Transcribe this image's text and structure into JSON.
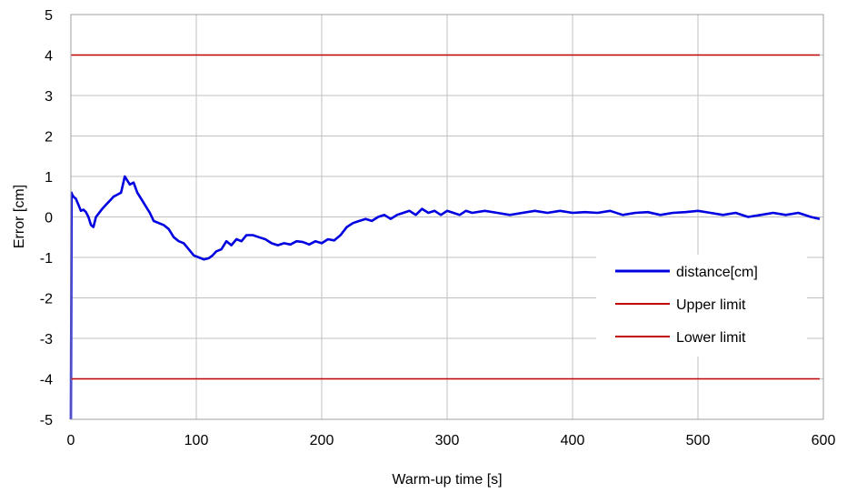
{
  "chart_data": {
    "type": "line",
    "title": "",
    "xlabel": "Warm-up time [s]",
    "ylabel": "Error  [cm]",
    "xlim": [
      0,
      600
    ],
    "ylim": [
      -5,
      5
    ],
    "xticks": [
      "0",
      "100",
      "200",
      "300",
      "400",
      "500",
      "600"
    ],
    "yticks": [
      "-5",
      "-4",
      "-3",
      "-2",
      "-1",
      "0",
      "1",
      "2",
      "3",
      "4",
      "5"
    ],
    "grid": true,
    "legend_position": "lower-right",
    "series": [
      {
        "name": "distance[cm]",
        "color": "#0000e0",
        "x": [
          0,
          0.5,
          1,
          2,
          4,
          6,
          8,
          10,
          12,
          14,
          16,
          18,
          20,
          22,
          25,
          28,
          31,
          34,
          37,
          40,
          43,
          45,
          47,
          50,
          53,
          56,
          60,
          63,
          66,
          70,
          74,
          78,
          82,
          86,
          90,
          94,
          98,
          102,
          106,
          110,
          113,
          116,
          120,
          124,
          128,
          132,
          136,
          140,
          145,
          150,
          155,
          160,
          165,
          170,
          175,
          180,
          185,
          190,
          195,
          200,
          205,
          210,
          215,
          220,
          225,
          230,
          235,
          240,
          245,
          250,
          255,
          260,
          265,
          270,
          275,
          280,
          285,
          290,
          295,
          300,
          305,
          310,
          315,
          320,
          330,
          340,
          350,
          360,
          370,
          380,
          390,
          400,
          410,
          420,
          430,
          440,
          450,
          460,
          470,
          480,
          490,
          500,
          510,
          520,
          530,
          540,
          550,
          560,
          570,
          580,
          590,
          597
        ],
        "values": [
          -5.0,
          0.6,
          0.55,
          0.5,
          0.45,
          0.3,
          0.15,
          0.18,
          0.12,
          0.0,
          -0.2,
          -0.25,
          0.0,
          0.08,
          0.2,
          0.3,
          0.4,
          0.5,
          0.55,
          0.6,
          1.0,
          0.9,
          0.8,
          0.85,
          0.6,
          0.45,
          0.25,
          0.1,
          -0.1,
          -0.15,
          -0.2,
          -0.3,
          -0.5,
          -0.6,
          -0.65,
          -0.8,
          -0.95,
          -1.0,
          -1.05,
          -1.02,
          -0.95,
          -0.85,
          -0.8,
          -0.6,
          -0.7,
          -0.55,
          -0.6,
          -0.45,
          -0.45,
          -0.5,
          -0.55,
          -0.65,
          -0.7,
          -0.65,
          -0.68,
          -0.6,
          -0.62,
          -0.68,
          -0.6,
          -0.65,
          -0.55,
          -0.58,
          -0.45,
          -0.25,
          -0.15,
          -0.1,
          -0.05,
          -0.1,
          0.0,
          0.05,
          -0.05,
          0.05,
          0.1,
          0.15,
          0.05,
          0.2,
          0.1,
          0.15,
          0.05,
          0.15,
          0.1,
          0.05,
          0.15,
          0.1,
          0.15,
          0.1,
          0.05,
          0.1,
          0.15,
          0.1,
          0.15,
          0.1,
          0.12,
          0.1,
          0.15,
          0.05,
          0.1,
          0.12,
          0.05,
          0.1,
          0.12,
          0.15,
          0.1,
          0.05,
          0.1,
          0.0,
          0.05,
          0.1,
          0.05,
          0.1,
          0.0,
          -0.05
        ]
      },
      {
        "name": "Upper limit",
        "color": "#c00000",
        "x": [
          0,
          597
        ],
        "values": [
          4,
          4
        ]
      },
      {
        "name": "Lower limit",
        "color": "#c00000",
        "x": [
          0,
          597
        ],
        "values": [
          -4,
          -4
        ]
      }
    ]
  }
}
